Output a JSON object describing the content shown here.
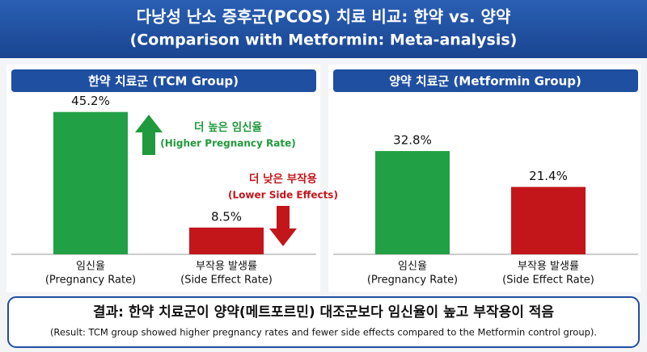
{
  "header": {
    "title": [
      "다낭성 난소 증후군(PCOS) 치료 비교: 한약 vs. 양약",
      "(Comparison with Metformin: Meta-analysis)"
    ]
  },
  "chart_data": [
    {
      "type": "bar",
      "title": "한약 치료군 (TCM Group)",
      "categories": [
        [
          "임신율",
          "(Pregnancy Rate)"
        ],
        [
          "부작용 발생률",
          "(Side Effect Rate)"
        ]
      ],
      "values": [
        45.2,
        8.5
      ],
      "value_labels": [
        "45.2%",
        "8.5%"
      ],
      "colors": [
        "#22a046",
        "#c2161b"
      ],
      "ylim": [
        0,
        50
      ],
      "annotations": [
        {
          "text": [
            "더 높은 임신율",
            "(Higher Pregnancy Rate)"
          ],
          "color": "#1f9a3c",
          "direction": "up"
        },
        {
          "text": [
            "더 낮은 부작용",
            "(Lower Side Effects)"
          ],
          "color": "#c2161b",
          "direction": "down"
        }
      ]
    },
    {
      "type": "bar",
      "title": "양약 치료군 (Metformin Group)",
      "categories": [
        [
          "임신율",
          "(Pregnancy Rate)"
        ],
        [
          "부작용 발생률",
          "(Side Effect Rate)"
        ]
      ],
      "values": [
        32.8,
        21.4
      ],
      "value_labels": [
        "32.8%",
        "21.4%"
      ],
      "colors": [
        "#22a046",
        "#c2161b"
      ],
      "ylim": [
        0,
        50
      ]
    }
  ],
  "conclusion": {
    "title": "결과: 한약 치료군이 양약(메트포르민) 대조군보다 임신율이 높고 부작용이 적음",
    "text": "(Result: TCM group showed higher pregnancy rates and fewer side effects compared to the Metformin control group)."
  }
}
